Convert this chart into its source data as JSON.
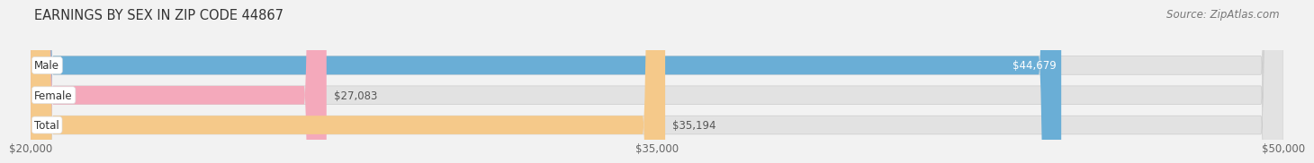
{
  "title": "EARNINGS BY SEX IN ZIP CODE 44867",
  "source": "Source: ZipAtlas.com",
  "categories": [
    "Male",
    "Female",
    "Total"
  ],
  "values": [
    44679,
    27083,
    35194
  ],
  "bar_colors": [
    "#6aaed6",
    "#f4a9bb",
    "#f5c98a"
  ],
  "bar_labels": [
    "$44,679",
    "$27,083",
    "$35,194"
  ],
  "value_label_inside": [
    true,
    false,
    false
  ],
  "xmin": 20000,
  "xmax": 50000,
  "xticks": [
    20000,
    35000,
    50000
  ],
  "xtick_labels": [
    "$20,000",
    "$35,000",
    "$50,000"
  ],
  "background_color": "#f2f2f2",
  "bar_bg_color": "#e2e2e2",
  "title_fontsize": 10.5,
  "source_fontsize": 8.5,
  "label_fontsize": 8.5,
  "tick_fontsize": 8.5,
  "category_fontsize": 8.5,
  "bar_height": 0.62
}
